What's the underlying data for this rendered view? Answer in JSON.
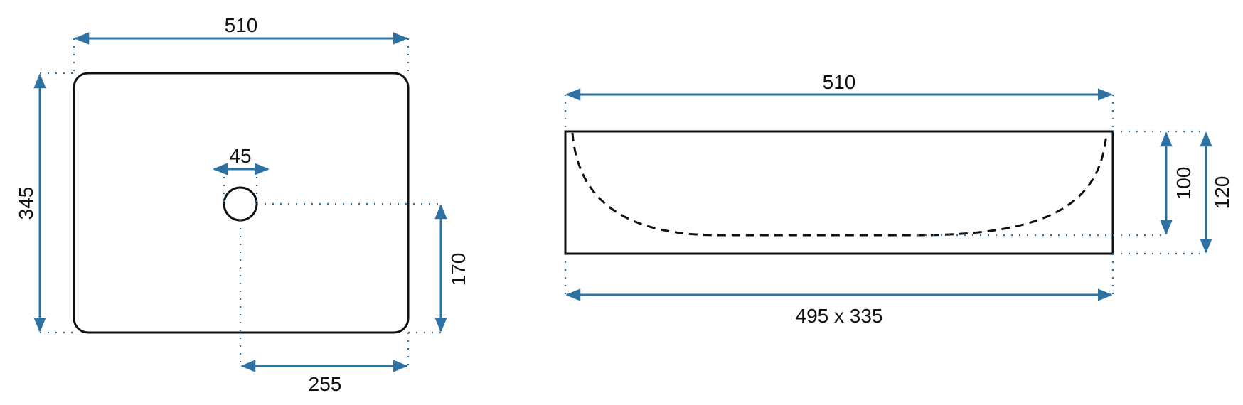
{
  "top_view": {
    "width_label": "510",
    "depth_label": "345",
    "drain_diameter_label": "45",
    "drain_offset_y_label": "170",
    "drain_offset_x_label": "255"
  },
  "side_view": {
    "width_label": "510",
    "inner_size_label": "495 x 335",
    "inner_depth_label": "100",
    "height_label": "120"
  },
  "colors": {
    "dimension_lines": "#2e72a3",
    "outline": "#111111"
  }
}
